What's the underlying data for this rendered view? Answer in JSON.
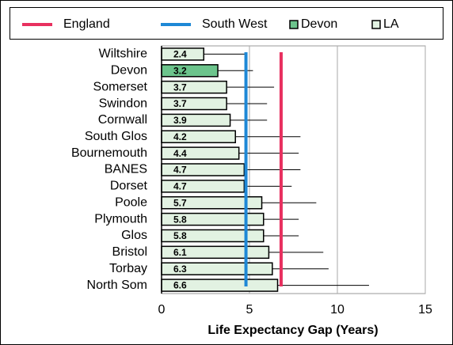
{
  "chart_data": {
    "type": "bar",
    "orientation": "horizontal",
    "xlabel": "Life Expectancy Gap (Years)",
    "categories": [
      "Wiltshire",
      "Devon",
      "Somerset",
      "Swindon",
      "Cornwall",
      "South Glos",
      "Bournemouth",
      "BANES",
      "Dorset",
      "Poole",
      "Plymouth",
      "Glos",
      "Bristol",
      "Torbay",
      "North Som"
    ],
    "series": [
      {
        "name": "LA",
        "color": "#e2f2e2",
        "values": [
          2.4,
          3.2,
          3.7,
          3.7,
          3.9,
          4.2,
          4.4,
          4.7,
          4.7,
          5.7,
          5.8,
          5.8,
          6.1,
          6.3,
          6.6
        ],
        "colors": [
          "#e2f2e2",
          "#6cc48c",
          "#e2f2e2",
          "#e2f2e2",
          "#e2f2e2",
          "#e2f2e2",
          "#e2f2e2",
          "#e2f2e2",
          "#e2f2e2",
          "#e2f2e2",
          "#e2f2e2",
          "#e2f2e2",
          "#e2f2e2",
          "#e2f2e2",
          "#e2f2e2"
        ],
        "lower": [
          0.8,
          1.5,
          1.2,
          1.5,
          1.8,
          1.1,
          1.2,
          1.5,
          2.1,
          2.6,
          3.7,
          3.9,
          3.0,
          3.0,
          3.0
        ],
        "upper": [
          4.8,
          5.2,
          6.4,
          6.0,
          6.0,
          7.9,
          7.8,
          7.9,
          7.4,
          8.8,
          7.8,
          7.8,
          9.2,
          9.5,
          11.8
        ]
      }
    ],
    "reference_lines": [
      {
        "name": "England",
        "color": "#e8305f",
        "value": 6.8
      },
      {
        "name": "South West",
        "color": "#1e88d6",
        "value": 4.8
      }
    ],
    "legend": [
      {
        "name": "Devon",
        "color": "#6cc48c"
      },
      {
        "name": "LA",
        "color": "#e2f2e2"
      }
    ],
    "xlim": [
      0,
      15
    ],
    "xticks": [
      0,
      5,
      10,
      15
    ],
    "grid": true
  }
}
